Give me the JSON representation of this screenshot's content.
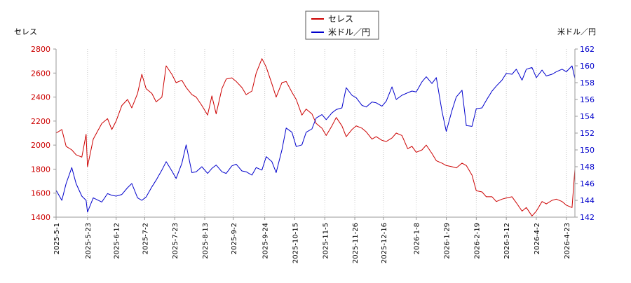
{
  "chart_data": {
    "type": "line",
    "ylabel_left": "セレス",
    "ylabel_right": "米ドル／円",
    "left_axis_color": "#cc0000",
    "right_axis_color": "#0000cc",
    "ylim_left": [
      1400,
      2800
    ],
    "ylim_right": [
      142,
      162
    ],
    "yticks_left": [
      1400,
      1600,
      1800,
      2000,
      2200,
      2400,
      2600,
      2800
    ],
    "yticks_right": [
      142,
      144,
      146,
      148,
      150,
      152,
      154,
      156,
      158,
      160,
      162
    ],
    "xlim": [
      "2025-05-01",
      "2026-04-29"
    ],
    "xticks": [
      "2025-5-1",
      "2025-5-23",
      "2025-6-12",
      "2025-7-2",
      "2025-7-23",
      "2025-8-13",
      "2025-9-2",
      "2025-9-24",
      "2025-10-15",
      "2025-11-5",
      "2025-11-26",
      "2025-12-16",
      "2026-1-8",
      "2026-1-29",
      "2026-2-19",
      "2026-3-12",
      "2026-4-2",
      "2026-4-23"
    ],
    "legend_position": "top-center",
    "series": [
      {
        "name": "セレス",
        "axis": "left",
        "color": "#cc0000",
        "points": [
          [
            "2025-05-01",
            2100
          ],
          [
            "2025-05-05",
            2130
          ],
          [
            "2025-05-08",
            1990
          ],
          [
            "2025-05-12",
            1960
          ],
          [
            "2025-05-15",
            1920
          ],
          [
            "2025-05-19",
            1900
          ],
          [
            "2025-05-22",
            2090
          ],
          [
            "2025-05-23",
            1820
          ],
          [
            "2025-05-27",
            2050
          ],
          [
            "2025-06-02",
            2180
          ],
          [
            "2025-06-06",
            2220
          ],
          [
            "2025-06-09",
            2130
          ],
          [
            "2025-06-12",
            2200
          ],
          [
            "2025-06-16",
            2330
          ],
          [
            "2025-06-20",
            2380
          ],
          [
            "2025-06-23",
            2310
          ],
          [
            "2025-06-27",
            2430
          ],
          [
            "2025-06-30",
            2590
          ],
          [
            "2025-07-03",
            2470
          ],
          [
            "2025-07-07",
            2430
          ],
          [
            "2025-07-10",
            2360
          ],
          [
            "2025-07-14",
            2400
          ],
          [
            "2025-07-17",
            2660
          ],
          [
            "2025-07-21",
            2590
          ],
          [
            "2025-07-24",
            2520
          ],
          [
            "2025-07-28",
            2540
          ],
          [
            "2025-07-31",
            2480
          ],
          [
            "2025-08-04",
            2420
          ],
          [
            "2025-08-07",
            2400
          ],
          [
            "2025-08-11",
            2330
          ],
          [
            "2025-08-15",
            2250
          ],
          [
            "2025-08-18",
            2410
          ],
          [
            "2025-08-21",
            2260
          ],
          [
            "2025-08-25",
            2470
          ],
          [
            "2025-08-28",
            2550
          ],
          [
            "2025-09-01",
            2560
          ],
          [
            "2025-09-04",
            2530
          ],
          [
            "2025-09-08",
            2480
          ],
          [
            "2025-09-11",
            2420
          ],
          [
            "2025-09-15",
            2450
          ],
          [
            "2025-09-18",
            2600
          ],
          [
            "2025-09-22",
            2720
          ],
          [
            "2025-09-25",
            2650
          ],
          [
            "2025-09-29",
            2510
          ],
          [
            "2025-10-02",
            2400
          ],
          [
            "2025-10-06",
            2520
          ],
          [
            "2025-10-09",
            2530
          ],
          [
            "2025-10-13",
            2440
          ],
          [
            "2025-10-16",
            2380
          ],
          [
            "2025-10-20",
            2250
          ],
          [
            "2025-10-23",
            2300
          ],
          [
            "2025-10-27",
            2260
          ],
          [
            "2025-10-30",
            2180
          ],
          [
            "2025-11-03",
            2140
          ],
          [
            "2025-11-06",
            2080
          ],
          [
            "2025-11-10",
            2160
          ],
          [
            "2025-11-13",
            2230
          ],
          [
            "2025-11-17",
            2160
          ],
          [
            "2025-11-20",
            2070
          ],
          [
            "2025-11-24",
            2130
          ],
          [
            "2025-11-27",
            2160
          ],
          [
            "2025-12-01",
            2140
          ],
          [
            "2025-12-04",
            2110
          ],
          [
            "2025-12-08",
            2050
          ],
          [
            "2025-12-11",
            2070
          ],
          [
            "2025-12-15",
            2040
          ],
          [
            "2025-12-18",
            2030
          ],
          [
            "2025-12-22",
            2060
          ],
          [
            "2025-12-25",
            2100
          ],
          [
            "2025-12-29",
            2080
          ],
          [
            "2026-01-02",
            1970
          ],
          [
            "2026-01-05",
            1990
          ],
          [
            "2026-01-08",
            1940
          ],
          [
            "2026-01-12",
            1960
          ],
          [
            "2026-01-15",
            2000
          ],
          [
            "2026-01-19",
            1930
          ],
          [
            "2026-01-22",
            1870
          ],
          [
            "2026-01-26",
            1850
          ],
          [
            "2026-01-29",
            1830
          ],
          [
            "2026-02-02",
            1820
          ],
          [
            "2026-02-05",
            1810
          ],
          [
            "2026-02-09",
            1850
          ],
          [
            "2026-02-12",
            1830
          ],
          [
            "2026-02-16",
            1750
          ],
          [
            "2026-02-19",
            1620
          ],
          [
            "2026-02-23",
            1610
          ],
          [
            "2026-02-26",
            1570
          ],
          [
            "2026-03-02",
            1570
          ],
          [
            "2026-03-05",
            1530
          ],
          [
            "2026-03-09",
            1550
          ],
          [
            "2026-03-12",
            1560
          ],
          [
            "2026-03-16",
            1570
          ],
          [
            "2026-03-19",
            1520
          ],
          [
            "2026-03-23",
            1450
          ],
          [
            "2026-03-26",
            1480
          ],
          [
            "2026-03-30",
            1410
          ],
          [
            "2026-04-02",
            1450
          ],
          [
            "2026-04-06",
            1530
          ],
          [
            "2026-04-09",
            1510
          ],
          [
            "2026-04-13",
            1540
          ],
          [
            "2026-04-16",
            1550
          ],
          [
            "2026-04-20",
            1530
          ],
          [
            "2026-04-23",
            1500
          ],
          [
            "2026-04-27",
            1480
          ],
          [
            "2026-04-29",
            1800
          ]
        ]
      },
      {
        "name": "米ドル／円",
        "axis": "right",
        "color": "#0000cc",
        "points": [
          [
            "2025-05-01",
            145.2
          ],
          [
            "2025-05-05",
            144.0
          ],
          [
            "2025-05-08",
            146.0
          ],
          [
            "2025-05-12",
            147.9
          ],
          [
            "2025-05-15",
            146.0
          ],
          [
            "2025-05-19",
            144.5
          ],
          [
            "2025-05-22",
            144.0
          ],
          [
            "2025-05-23",
            142.6
          ],
          [
            "2025-05-27",
            144.3
          ],
          [
            "2025-06-02",
            143.8
          ],
          [
            "2025-06-06",
            144.8
          ],
          [
            "2025-06-09",
            144.6
          ],
          [
            "2025-06-12",
            144.5
          ],
          [
            "2025-06-16",
            144.7
          ],
          [
            "2025-06-20",
            145.5
          ],
          [
            "2025-06-23",
            146.0
          ],
          [
            "2025-06-27",
            144.3
          ],
          [
            "2025-06-30",
            144.0
          ],
          [
            "2025-07-03",
            144.4
          ],
          [
            "2025-07-07",
            145.6
          ],
          [
            "2025-07-10",
            146.4
          ],
          [
            "2025-07-14",
            147.6
          ],
          [
            "2025-07-17",
            148.6
          ],
          [
            "2025-07-21",
            147.5
          ],
          [
            "2025-07-24",
            146.6
          ],
          [
            "2025-07-28",
            148.4
          ],
          [
            "2025-07-31",
            150.6
          ],
          [
            "2025-08-04",
            147.3
          ],
          [
            "2025-08-07",
            147.4
          ],
          [
            "2025-08-11",
            148.0
          ],
          [
            "2025-08-15",
            147.2
          ],
          [
            "2025-08-18",
            147.8
          ],
          [
            "2025-08-21",
            148.2
          ],
          [
            "2025-08-25",
            147.4
          ],
          [
            "2025-08-28",
            147.2
          ],
          [
            "2025-09-01",
            148.1
          ],
          [
            "2025-09-04",
            148.3
          ],
          [
            "2025-09-08",
            147.5
          ],
          [
            "2025-09-11",
            147.4
          ],
          [
            "2025-09-15",
            147.0
          ],
          [
            "2025-09-18",
            147.9
          ],
          [
            "2025-09-22",
            147.6
          ],
          [
            "2025-09-25",
            149.2
          ],
          [
            "2025-09-29",
            148.6
          ],
          [
            "2025-10-02",
            147.3
          ],
          [
            "2025-10-06",
            150.0
          ],
          [
            "2025-10-09",
            152.6
          ],
          [
            "2025-10-13",
            152.1
          ],
          [
            "2025-10-16",
            150.4
          ],
          [
            "2025-10-20",
            150.6
          ],
          [
            "2025-10-23",
            152.1
          ],
          [
            "2025-10-27",
            152.5
          ],
          [
            "2025-10-30",
            153.8
          ],
          [
            "2025-11-03",
            154.2
          ],
          [
            "2025-11-06",
            153.6
          ],
          [
            "2025-11-10",
            154.4
          ],
          [
            "2025-11-13",
            154.8
          ],
          [
            "2025-11-17",
            155.0
          ],
          [
            "2025-11-20",
            157.4
          ],
          [
            "2025-11-24",
            156.5
          ],
          [
            "2025-11-27",
            156.2
          ],
          [
            "2025-12-01",
            155.3
          ],
          [
            "2025-12-04",
            155.1
          ],
          [
            "2025-12-08",
            155.7
          ],
          [
            "2025-12-11",
            155.6
          ],
          [
            "2025-12-15",
            155.2
          ],
          [
            "2025-12-18",
            155.8
          ],
          [
            "2025-12-22",
            157.5
          ],
          [
            "2025-12-25",
            156.0
          ],
          [
            "2025-12-29",
            156.5
          ],
          [
            "2026-01-02",
            156.8
          ],
          [
            "2026-01-05",
            157.0
          ],
          [
            "2026-01-08",
            156.9
          ],
          [
            "2026-01-12",
            158.1
          ],
          [
            "2026-01-15",
            158.7
          ],
          [
            "2026-01-19",
            157.9
          ],
          [
            "2026-01-22",
            158.6
          ],
          [
            "2026-01-26",
            154.6
          ],
          [
            "2026-01-29",
            152.2
          ],
          [
            "2026-02-02",
            154.7
          ],
          [
            "2026-02-05",
            156.3
          ],
          [
            "2026-02-09",
            157.1
          ],
          [
            "2026-02-12",
            152.9
          ],
          [
            "2026-02-16",
            152.8
          ],
          [
            "2026-02-19",
            154.9
          ],
          [
            "2026-02-23",
            155.0
          ],
          [
            "2026-02-26",
            155.9
          ],
          [
            "2026-03-02",
            157.0
          ],
          [
            "2026-03-05",
            157.6
          ],
          [
            "2026-03-09",
            158.3
          ],
          [
            "2026-03-12",
            159.1
          ],
          [
            "2026-03-16",
            159.0
          ],
          [
            "2026-03-19",
            159.6
          ],
          [
            "2026-03-23",
            158.3
          ],
          [
            "2026-03-26",
            159.6
          ],
          [
            "2026-03-30",
            159.8
          ],
          [
            "2026-04-02",
            158.6
          ],
          [
            "2026-04-06",
            159.5
          ],
          [
            "2026-04-09",
            158.8
          ],
          [
            "2026-04-13",
            159.0
          ],
          [
            "2026-04-16",
            159.3
          ],
          [
            "2026-04-20",
            159.6
          ],
          [
            "2026-04-23",
            159.3
          ],
          [
            "2026-04-27",
            160.0
          ],
          [
            "2026-04-29",
            158.5
          ]
        ]
      }
    ]
  }
}
